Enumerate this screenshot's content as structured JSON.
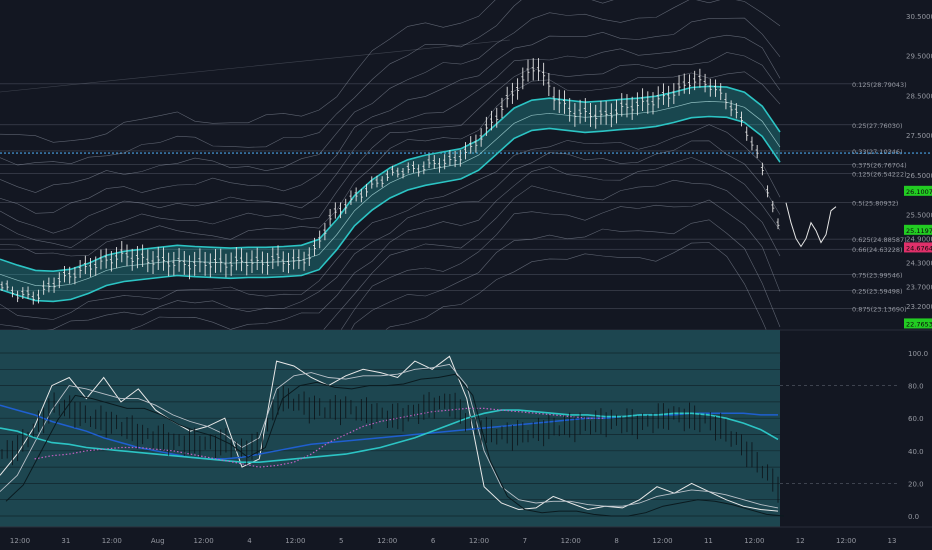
{
  "colors": {
    "background": "#131722",
    "lower_panel_bg": "#1d4650",
    "teal": "#2cc4c4",
    "band": "#9aa3b0",
    "blue_dotted": "#4aa3e6",
    "white_line": "#e8e8e8",
    "dark_blue": "#1f5fd0",
    "magenta": "#c060c0",
    "green_tag": "#22cc22",
    "pink_tag": "#e0306a",
    "axis_text": "#9598a1"
  },
  "chart_data": [
    {
      "type": "line",
      "panel": "price",
      "y_ticks": [
        "30.5000",
        "29.5000",
        "28.5000",
        "27.5000",
        "26.5000",
        "25.5000",
        "24.9000",
        "24.3000",
        "23.7000",
        "23.2000"
      ],
      "fib_levels": [
        {
          "label": "0.125(28.79043)",
          "value": 28.79043
        },
        {
          "label": "0.25(27.76030)",
          "value": 27.7603
        },
        {
          "label": "0.33(27.10346)",
          "value": 27.10346
        },
        {
          "label": "0.375(26.76704)",
          "value": 26.76704
        },
        {
          "label": "0.125(26.54222)",
          "value": 26.54222
        },
        {
          "label": "0.5(25.80932)",
          "value": 25.80932
        },
        {
          "label": "0.625(24.88587)",
          "value": 24.88587
        },
        {
          "label": "0.66(24.63228)",
          "value": 24.63228
        },
        {
          "label": "0.75(23.99546)",
          "value": 23.99546
        },
        {
          "label": "0.25(23.59498)",
          "value": 23.59498
        },
        {
          "label": "0.875(23.13690)",
          "value": 23.1369
        }
      ],
      "price_tags": [
        {
          "label": "26.10074",
          "value": 26.10074,
          "color": "green"
        },
        {
          "label": "25.11970",
          "value": 25.1197,
          "color": "green"
        },
        {
          "label": "24.67643",
          "value": 24.67643,
          "color": "pink"
        },
        {
          "label": "22.76534",
          "value": 22.76534,
          "color": "green"
        }
      ],
      "horizontal_line": 27.05,
      "series": [
        {
          "role": "teal_center",
          "values": [
            24.0,
            23.85,
            23.72,
            23.7,
            23.75,
            23.9,
            24.1,
            24.2,
            24.25,
            24.3,
            24.35,
            24.32,
            24.3,
            24.28,
            24.3,
            24.3,
            24.32,
            24.35,
            24.5,
            25.0,
            25.6,
            26.0,
            26.3,
            26.5,
            26.62,
            26.7,
            26.78,
            27.0,
            27.4,
            27.8,
            28.0,
            28.05,
            28.0,
            27.95,
            27.98,
            28.02,
            28.05,
            28.1,
            28.2,
            28.32,
            28.35,
            28.33,
            28.2,
            27.85,
            27.2
          ]
        },
        {
          "role": "price",
          "values": [
            23.7,
            23.5,
            23.45,
            23.8,
            24.0,
            24.2,
            24.35,
            24.5,
            24.4,
            24.35,
            24.3,
            24.25,
            24.3,
            24.28,
            24.35,
            24.3,
            24.4,
            24.3,
            24.5,
            25.4,
            25.8,
            26.1,
            26.4,
            26.6,
            26.65,
            26.8,
            26.85,
            27.1,
            27.6,
            28.2,
            28.8,
            29.3,
            28.5,
            28.1,
            28.05,
            28.0,
            28.2,
            28.3,
            28.4,
            28.6,
            28.9,
            28.8,
            28.4,
            27.8,
            26.8,
            25.2
          ]
        }
      ],
      "projection": [
        25.8,
        25.3,
        24.9,
        24.7,
        24.9,
        25.3,
        25.1,
        24.8,
        25.0,
        25.6,
        25.7
      ]
    },
    {
      "type": "line",
      "panel": "oscillator",
      "x_tick_labels": [
        "12:00",
        "31",
        "12:00",
        "Aug",
        "12:00",
        "4",
        "12:00",
        "5",
        "12:00",
        "6",
        "12:00",
        "7",
        "12:00",
        "8",
        "12:00",
        "11",
        "12:00",
        "12",
        "12:00",
        "13"
      ],
      "y_ticks": [
        "100.0",
        "80.0",
        "60.0",
        "40.0",
        "20.0",
        "0.0"
      ],
      "ylim": [
        0,
        100
      ],
      "series": [
        {
          "role": "white",
          "values": [
            25,
            38,
            55,
            80,
            85,
            72,
            85,
            70,
            78,
            65,
            58,
            52,
            55,
            60,
            30,
            35,
            95,
            92,
            85,
            80,
            86,
            90,
            88,
            85,
            95,
            90,
            98,
            72,
            18,
            8,
            4,
            5,
            12,
            8,
            4,
            6,
            5,
            10,
            18,
            14,
            20,
            15,
            10,
            6,
            4,
            3
          ]
        },
        {
          "role": "white_smooth",
          "values": [
            15,
            25,
            45,
            65,
            80,
            78,
            75,
            72,
            72,
            68,
            62,
            58,
            55,
            50,
            42,
            48,
            78,
            86,
            88,
            85,
            84,
            86,
            86,
            87,
            90,
            91,
            93,
            80,
            40,
            18,
            10,
            8,
            9,
            9,
            7,
            6,
            6,
            8,
            12,
            14,
            16,
            15,
            13,
            10,
            7,
            5
          ]
        },
        {
          "role": "dark_blue",
          "values": [
            68,
            65,
            62,
            58,
            55,
            52,
            48,
            45,
            42,
            40,
            38,
            36,
            35,
            35,
            36,
            38,
            40,
            42,
            44,
            45,
            46,
            47,
            48,
            49,
            50,
            51,
            52,
            53,
            54,
            55,
            56,
            57,
            58,
            59,
            60,
            60,
            61,
            62,
            62,
            62,
            63,
            63,
            63,
            63,
            62,
            62
          ]
        },
        {
          "role": "teal",
          "values": [
            54,
            52,
            48,
            45,
            44,
            42,
            41,
            40,
            39,
            38,
            37,
            36,
            35,
            34,
            33,
            33,
            34,
            35,
            36,
            37,
            38,
            40,
            42,
            45,
            48,
            52,
            56,
            60,
            63,
            65,
            65,
            64,
            63,
            62,
            62,
            61,
            61,
            62,
            62,
            63,
            63,
            62,
            60,
            57,
            53,
            47
          ]
        },
        {
          "role": "magenta",
          "values": [
            null,
            null,
            35,
            37,
            38,
            40,
            41,
            42,
            42,
            41,
            40,
            38,
            36,
            34,
            32,
            30,
            31,
            33,
            38,
            45,
            50,
            55,
            58,
            60,
            62,
            64,
            65,
            66,
            66,
            65,
            64,
            63,
            62,
            61,
            60,
            60,
            null,
            null,
            null,
            null,
            null,
            null,
            null,
            null,
            null,
            null
          ]
        },
        {
          "role": "price_bars",
          "values": [
            38,
            42,
            55,
            68,
            65,
            60,
            58,
            55,
            50,
            48,
            45,
            45,
            44,
            45,
            40,
            44,
            72,
            70,
            66,
            65,
            66,
            64,
            62,
            60,
            64,
            68,
            70,
            58,
            52,
            50,
            50,
            52,
            54,
            55,
            56,
            58,
            58,
            56,
            60,
            62,
            60,
            58,
            52,
            42,
            30,
            18
          ]
        }
      ]
    }
  ]
}
